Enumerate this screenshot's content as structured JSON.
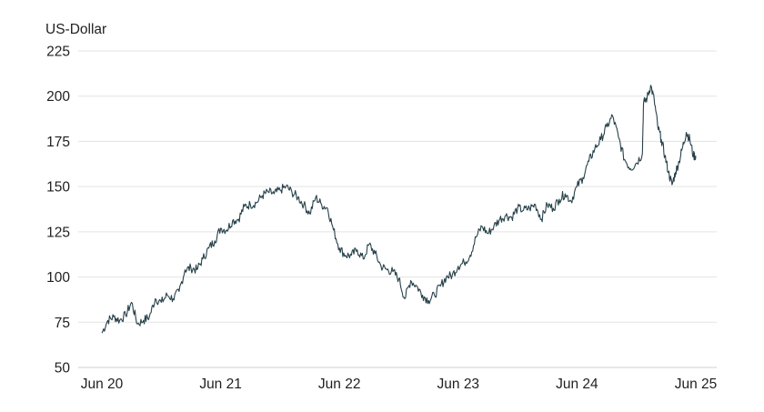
{
  "chart_data": {
    "type": "line",
    "ylabel": "US-Dollar",
    "ylim": [
      50,
      225
    ],
    "y_ticks": [
      "50",
      "75",
      "100",
      "125",
      "150",
      "175",
      "200",
      "225"
    ],
    "x_ticks": [
      "Jun 20",
      "Jun 21",
      "Jun 22",
      "Jun 23",
      "Jun 24",
      "Jun 25"
    ],
    "grid": true,
    "colors": {
      "line": "#26414a",
      "grid": "#e3e3e3"
    },
    "x_unit": "years since Jun 20",
    "series": [
      {
        "x": [
          0.0,
          0.05,
          0.1,
          0.15,
          0.2,
          0.25,
          0.3,
          0.35,
          0.4,
          0.45,
          0.5,
          0.55,
          0.6,
          0.65,
          0.7,
          0.75,
          0.8,
          0.85,
          0.9,
          0.95,
          1.0,
          1.05,
          1.1,
          1.15,
          1.2,
          1.25,
          1.3,
          1.35,
          1.4,
          1.45,
          1.5,
          1.55,
          1.6,
          1.65,
          1.7,
          1.75,
          1.8,
          1.85,
          1.9,
          1.95,
          2.0,
          2.05,
          2.1,
          2.15,
          2.2,
          2.25,
          2.3,
          2.35,
          2.4,
          2.45,
          2.5,
          2.55,
          2.6,
          2.65,
          2.7,
          2.75,
          2.8,
          2.85,
          2.9,
          2.95,
          3.0,
          3.05,
          3.1,
          3.15,
          3.2,
          3.25,
          3.3,
          3.35,
          3.4,
          3.45,
          3.5,
          3.55,
          3.6,
          3.65,
          3.7,
          3.75,
          3.8,
          3.85,
          3.9,
          3.95,
          4.0,
          4.05,
          4.1,
          4.15,
          4.2,
          4.25,
          4.3,
          4.35,
          4.4,
          4.45,
          4.5,
          4.55,
          4.6,
          4.65,
          4.7,
          4.75,
          4.8,
          4.85,
          4.9,
          4.95,
          5.0
        ],
        "y": [
          69,
          76,
          78,
          76,
          79,
          86,
          74,
          76,
          78,
          88,
          86,
          90,
          88,
          92,
          104,
          105,
          104,
          110,
          116,
          120,
          127,
          126,
          131,
          132,
          139,
          140,
          141,
          145,
          147,
          146,
          148,
          150,
          147,
          144,
          140,
          135,
          144,
          140,
          138,
          126,
          116,
          112,
          112,
          115,
          110,
          118,
          113,
          106,
          104,
          103,
          99,
          88,
          98,
          95,
          90,
          87,
          90,
          95,
          100,
          101,
          106,
          108,
          112,
          122,
          128,
          124,
          128,
          132,
          134,
          133,
          138,
          137,
          138,
          140,
          132,
          140,
          138,
          143,
          146,
          142,
          150,
          155,
          164,
          171,
          176,
          183,
          189,
          177,
          165,
          160,
          163,
          168,
          172,
          180,
          196,
          198,
          194,
          178,
          168,
          156,
          167
        ],
        "extra_x": [
          4.56,
          4.59,
          4.62,
          4.65,
          4.68,
          4.71,
          4.74,
          4.77,
          4.8,
          4.83,
          4.86,
          4.89,
          4.92,
          4.95,
          4.98
        ],
        "extra_y": [
          196,
          199,
          206,
          198,
          183,
          176,
          167,
          158,
          151,
          158,
          164,
          172,
          180,
          176,
          167
        ]
      }
    ]
  }
}
